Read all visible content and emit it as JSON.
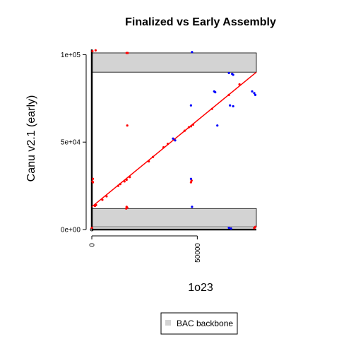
{
  "chart_data": {
    "type": "scatter",
    "title": "Finalized vs Early Assembly",
    "xlabel": "1o23",
    "ylabel": "Canu v2.1 (early)",
    "xlim": [
      0,
      78000
    ],
    "ylim": [
      0,
      103000
    ],
    "x_ticks": [
      {
        "value": 0,
        "label": "0"
      },
      {
        "value": 50000,
        "label": "50000"
      }
    ],
    "y_ticks": [
      {
        "value": 0,
        "label": "0e+00"
      },
      {
        "value": 50000,
        "label": "5e+04"
      },
      {
        "value": 100000,
        "label": "1e+05"
      }
    ],
    "grid": false,
    "legend_position": "bottom",
    "legend": [
      {
        "label": "BAC backbone",
        "color": "#d3d3d3"
      }
    ],
    "backbone_regions": [
      {
        "x": [
          0,
          78000
        ],
        "y": [
          1500,
          12000
        ]
      },
      {
        "x": [
          0,
          78000
        ],
        "y": [
          90000,
          101000
        ]
      }
    ],
    "diagonal_line": {
      "x": [
        0,
        78000
      ],
      "y": [
        13000,
        90000
      ],
      "color": "#ff0000"
    },
    "series": [
      {
        "color": "#ff0000",
        "points": [
          [
            300,
            102000
          ],
          [
            1800,
            102500
          ],
          [
            16500,
            101000
          ],
          [
            17000,
            101000
          ],
          [
            500,
            29000
          ],
          [
            300,
            27500
          ],
          [
            500,
            27000
          ],
          [
            16800,
            59500
          ],
          [
            16500,
            13000
          ],
          [
            16800,
            12500
          ],
          [
            16300,
            12000
          ],
          [
            0,
            1000
          ],
          [
            77500,
            1500
          ],
          [
            77000,
            800
          ],
          [
            1500,
            13500
          ],
          [
            2000,
            14000
          ],
          [
            5000,
            17000
          ],
          [
            7000,
            19000
          ],
          [
            12500,
            25000
          ],
          [
            13500,
            26000
          ],
          [
            15500,
            27500
          ],
          [
            16500,
            28500
          ],
          [
            18000,
            30000
          ],
          [
            27000,
            39000
          ],
          [
            29000,
            41500
          ],
          [
            34000,
            47000
          ],
          [
            36000,
            49000
          ],
          [
            39000,
            51500
          ],
          [
            44000,
            56500
          ],
          [
            46000,
            58500
          ],
          [
            47000,
            59000
          ],
          [
            48000,
            60000
          ],
          [
            47000,
            27000
          ],
          [
            47300,
            28000
          ],
          [
            57000,
            69000
          ],
          [
            65000,
            77000
          ],
          [
            70000,
            83000
          ]
        ]
      },
      {
        "color": "#0000ff",
        "points": [
          [
            47500,
            101500
          ],
          [
            65000,
            89500
          ],
          [
            66500,
            89000
          ],
          [
            67000,
            88500
          ],
          [
            58000,
            79000
          ],
          [
            58500,
            78500
          ],
          [
            65500,
            71000
          ],
          [
            67000,
            70500
          ],
          [
            47000,
            71000
          ],
          [
            59500,
            59500
          ],
          [
            39500,
            51000
          ],
          [
            38500,
            52000
          ],
          [
            47000,
            29000
          ],
          [
            47500,
            13000
          ],
          [
            65000,
            1000
          ],
          [
            66000,
            500
          ],
          [
            76000,
            79000
          ],
          [
            77000,
            78000
          ],
          [
            77500,
            77000
          ]
        ]
      }
    ]
  }
}
